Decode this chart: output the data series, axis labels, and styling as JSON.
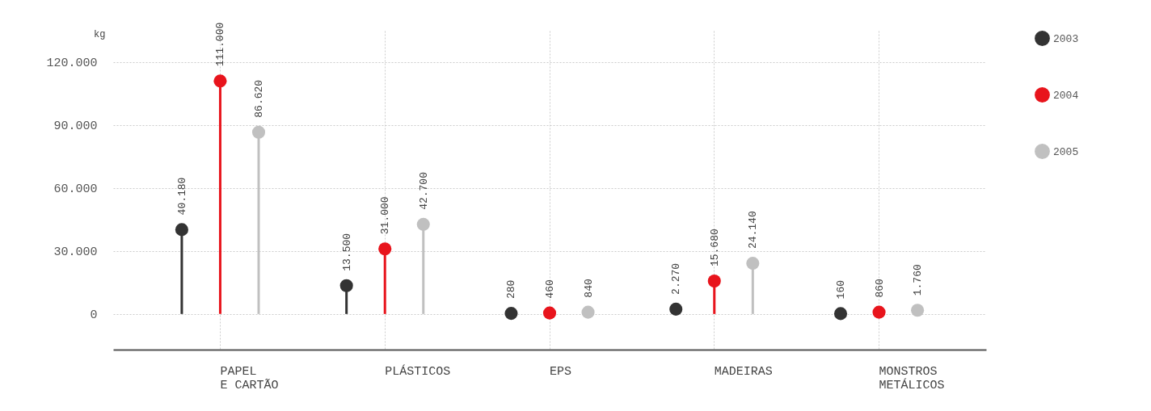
{
  "chart_data": {
    "type": "lollipop",
    "ylabel": "kg",
    "categories": [
      "PAPEL\nE CARTÃO",
      "PLÁSTICOS",
      "EPS",
      "MADEIRAS",
      "MONSTROS\nMETÁLICOS"
    ],
    "series": [
      {
        "name": "2003",
        "color": "#333333",
        "values": [
          40180,
          13500,
          280,
          2270,
          160
        ],
        "value_labels": [
          "40.180",
          "13.500",
          "280",
          "2.270",
          "160"
        ]
      },
      {
        "name": "2004",
        "color": "#e8141c",
        "values": [
          111000,
          31000,
          460,
          15680,
          860
        ],
        "value_labels": [
          "111.000",
          "31.000",
          "460",
          "15.680",
          "860"
        ]
      },
      {
        "name": "2005",
        "color": "#c0c0c0",
        "values": [
          86620,
          42700,
          840,
          24140,
          1760
        ],
        "value_labels": [
          "86.620",
          "42.700",
          "840",
          "24.140",
          "1.760"
        ]
      }
    ],
    "ylim": [
      -17000,
      135000
    ],
    "yticks": [
      {
        "value": 0,
        "label": "0"
      },
      {
        "value": 30000,
        "label": "30.000"
      },
      {
        "value": 60000,
        "label": "60.000"
      },
      {
        "value": 90000,
        "label": "90.000"
      },
      {
        "value": 120000,
        "label": "120.000"
      }
    ],
    "grid": true,
    "legend": "right",
    "marker": "circle"
  }
}
